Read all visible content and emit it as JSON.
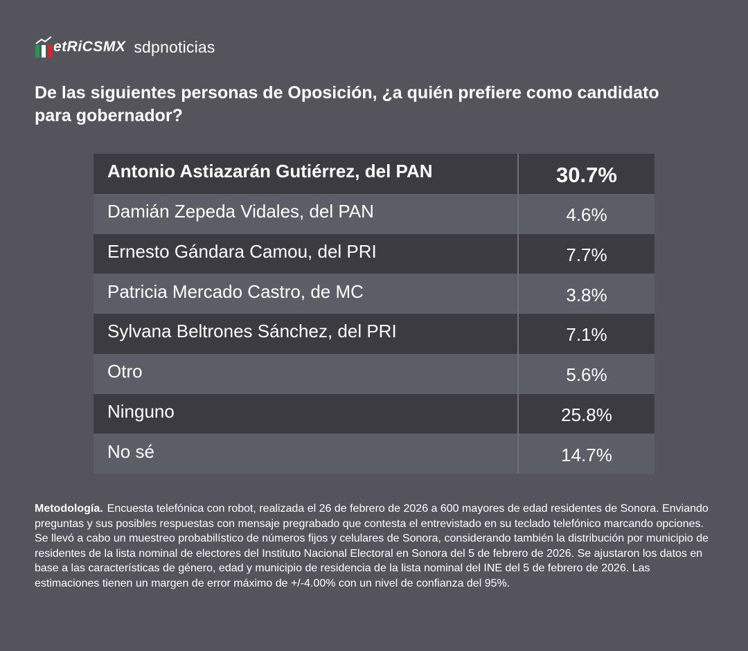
{
  "header": {
    "logo": "etRiCSMX",
    "partner": "sdpnoticias",
    "title": "De las siguientes personas de Oposición, ¿a quién prefiere como candidato para gobernador?"
  },
  "table": {
    "rows": [
      [
        "Antonio Astiazarán Gutiérrez, del PAN",
        "30.7%"
      ],
      [
        "Damián Zepeda Vidales, del PAN",
        "4.6%"
      ],
      [
        "Ernesto Gándara Camou, del PRI",
        "7.7%"
      ],
      [
        "Patricia Mercado Castro, de MC",
        "3.8%"
      ],
      [
        "Sylvana Beltrones Sánchez, del PRI",
        "7.1%"
      ],
      [
        "Otro",
        "5.6%"
      ],
      [
        "Ninguno",
        "25.8%"
      ],
      [
        "No sé",
        "14.7%"
      ]
    ]
  },
  "footer": {
    "label": "Metodología.",
    "text": "Encuesta telefónica con robot, realizada el 26 de febrero de 2026 a 600 mayores de edad residentes de Sonora. Enviando preguntas y sus posibles respuestas con mensaje pregrabado que contesta el entrevistado en su teclado telefónico marcando opciones. Se llevó a cabo un muestreo probabilístico de números fijos y celulares de Sonora, considerando también la distribución por municipio de residentes de la lista nominal de electores del Instituto Nacional Electoral en Sonora del 5 de febrero de 2026. Se ajustaron los datos en base a las características de género, edad y municipio de residencia de la lista nominal del INE del 5 de febrero de 2026. Las estimaciones tienen un margen de error máximo de +/-4.00% con un nivel de confianza del 95%."
  }
}
